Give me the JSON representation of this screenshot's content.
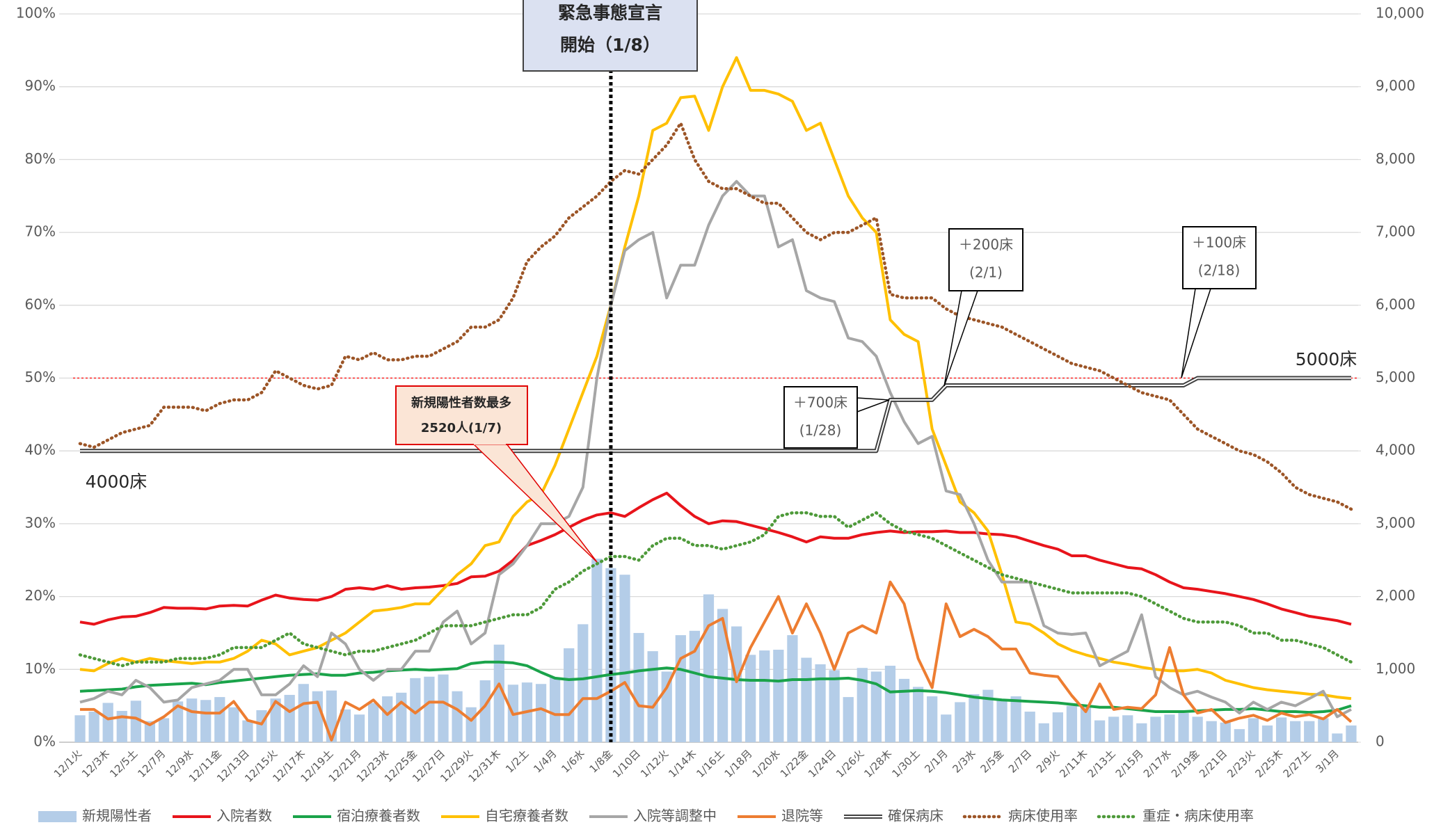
{
  "chart_data": {
    "type": "combo",
    "categories": [
      "12/1火",
      null,
      "12/3木",
      null,
      "12/5土",
      null,
      "12/7月",
      null,
      "12/9水",
      null,
      "12/11金",
      null,
      "12/13日",
      null,
      "12/15火",
      null,
      "12/17木",
      null,
      "12/19土",
      null,
      "12/21月",
      null,
      "12/23水",
      null,
      "12/25金",
      null,
      "12/27日",
      null,
      "12/29火",
      null,
      "12/31木",
      null,
      "1/2土",
      null,
      "1/4月",
      null,
      "1/6水",
      null,
      "1/8金",
      null,
      "1/10日",
      null,
      "1/12火",
      null,
      "1/14木",
      null,
      "1/16土",
      null,
      "1/18月",
      null,
      "1/20水",
      null,
      "1/22金",
      null,
      "1/24日",
      null,
      "1/26火",
      null,
      "1/28木",
      null,
      "1/30土",
      null,
      "2/1月",
      null,
      "2/3水",
      null,
      "2/5金",
      null,
      "2/7日",
      null,
      "2/9火",
      null,
      "2/11木",
      null,
      "2/13土",
      null,
      "2/15月",
      null,
      "2/17水",
      null,
      "2/19金",
      null,
      "2/21日",
      null,
      "2/23火",
      null,
      "2/25木",
      null,
      "2/27土",
      null,
      "3/1月",
      null
    ],
    "ylim": [
      0,
      100
    ],
    "yticks": [
      {
        "value": 0,
        "label": "0%"
      },
      {
        "value": 10,
        "label": "10%"
      },
      {
        "value": 20,
        "label": "20%"
      },
      {
        "value": 30,
        "label": "30%"
      },
      {
        "value": 40,
        "label": "40%"
      },
      {
        "value": 50,
        "label": "50%"
      },
      {
        "value": 60,
        "label": "60%"
      },
      {
        "value": 70,
        "label": "70%"
      },
      {
        "value": 80,
        "label": "80%"
      },
      {
        "value": 90,
        "label": "90%"
      },
      {
        "value": 100,
        "label": "100%"
      }
    ],
    "y2lim": [
      0,
      10000
    ],
    "y2ticks": [
      0,
      {
        "value": 1000,
        "label": "1,000"
      },
      {
        "value": 2000,
        "label": "2,000"
      },
      {
        "value": 3000,
        "label": "3,000"
      },
      {
        "value": 4000,
        "label": "4,000"
      },
      {
        "value": 5000,
        "label": "5,000"
      },
      {
        "value": 6000,
        "label": "6,000"
      },
      {
        "value": 7000,
        "label": "7,000"
      },
      {
        "value": 8000,
        "label": "8,000"
      },
      {
        "value": 9000,
        "label": "9,000"
      },
      {
        "value": 10000,
        "label": "10,000"
      }
    ],
    "grid": true,
    "reference_line": {
      "value": 50,
      "color": "#ff0000"
    },
    "legend": "bottom",
    "series": [
      {
        "name": "新規陽性者",
        "type": "bar",
        "axis": "y2",
        "color": "#b4cde8",
        "values": [
          370,
          420,
          540,
          430,
          570,
          290,
          330,
          560,
          600,
          580,
          620,
          480,
          300,
          440,
          600,
          650,
          800,
          700,
          710,
          450,
          380,
          540,
          630,
          680,
          880,
          900,
          930,
          700,
          480,
          850,
          1340,
          790,
          820,
          800,
          890,
          1290,
          1620,
          2520,
          2390,
          2300,
          1500,
          1250,
          970,
          1470,
          1530,
          2030,
          1830,
          1590,
          1200,
          1260,
          1270,
          1470,
          1160,
          1070,
          990,
          620,
          1020,
          970,
          1050,
          870,
          760,
          630,
          380,
          550,
          660,
          720,
          580,
          630,
          420,
          260,
          410,
          500,
          480,
          300,
          350,
          370,
          260,
          350,
          380,
          400,
          350,
          290,
          270,
          180,
          330,
          230,
          340,
          290,
          290,
          330,
          120,
          230
        ]
      },
      {
        "name": "入院者数",
        "type": "line",
        "axis": "y2",
        "color": "#e8141b",
        "values": [
          1650,
          1620,
          1680,
          1720,
          1730,
          1780,
          1850,
          1840,
          1840,
          1830,
          1870,
          1880,
          1870,
          1950,
          2020,
          1980,
          1960,
          1950,
          2000,
          2100,
          2120,
          2100,
          2150,
          2100,
          2120,
          2130,
          2150,
          2180,
          2270,
          2280,
          2350,
          2500,
          2700,
          2770,
          2850,
          2950,
          3050,
          3120,
          3150,
          3100,
          3220,
          3330,
          3420,
          3250,
          3100,
          3000,
          3040,
          3030,
          2980,
          2930,
          2880,
          2820,
          2750,
          2820,
          2800,
          2800,
          2850,
          2880,
          2900,
          2880,
          2890,
          2890,
          2900,
          2880,
          2880,
          2860,
          2850,
          2820,
          2760,
          2700,
          2650,
          2560,
          2560,
          2500,
          2450,
          2400,
          2380,
          2300,
          2200,
          2120,
          2100,
          2070,
          2040,
          2000,
          1960,
          1900,
          1830,
          1780,
          1730,
          1700,
          1670,
          1620
        ]
      },
      {
        "name": "宿泊療養者数",
        "type": "line",
        "axis": "y2",
        "color": "#1aa34a",
        "values": [
          700,
          710,
          720,
          730,
          760,
          780,
          790,
          800,
          810,
          790,
          820,
          840,
          860,
          880,
          900,
          920,
          930,
          940,
          920,
          920,
          950,
          960,
          980,
          990,
          1000,
          990,
          1000,
          1010,
          1080,
          1100,
          1100,
          1090,
          1050,
          960,
          880,
          860,
          870,
          900,
          930,
          950,
          980,
          1000,
          1020,
          1000,
          950,
          900,
          880,
          860,
          850,
          850,
          840,
          860,
          860,
          870,
          870,
          880,
          850,
          800,
          690,
          700,
          710,
          700,
          680,
          650,
          620,
          600,
          580,
          570,
          560,
          550,
          540,
          520,
          500,
          480,
          480,
          460,
          440,
          420,
          420,
          420,
          430,
          440,
          450,
          450,
          460,
          440,
          420,
          420,
          410,
          420,
          440,
          500
        ]
      },
      {
        "name": "自宅療養者数",
        "type": "line",
        "axis": "y2",
        "color": "#ffc000",
        "values": [
          1000,
          980,
          1080,
          1150,
          1100,
          1150,
          1120,
          1100,
          1080,
          1100,
          1100,
          1150,
          1250,
          1400,
          1350,
          1200,
          1250,
          1300,
          1400,
          1500,
          1650,
          1800,
          1820,
          1850,
          1900,
          1900,
          2100,
          2300,
          2450,
          2700,
          2750,
          3100,
          3300,
          3400,
          3800,
          4300,
          4800,
          5300,
          6000,
          6800,
          7500,
          8400,
          8500,
          8850,
          8870,
          8400,
          9000,
          9400,
          8950,
          8950,
          8900,
          8800,
          8400,
          8500,
          8000,
          7500,
          7200,
          7000,
          5800,
          5600,
          5500,
          4300,
          3800,
          3300,
          3150,
          2900,
          2300,
          1650,
          1620,
          1500,
          1350,
          1260,
          1200,
          1150,
          1100,
          1070,
          1030,
          1000,
          980,
          980,
          1000,
          950,
          850,
          800,
          750,
          720,
          700,
          680,
          660,
          650,
          620,
          600
        ]
      },
      {
        "name": "入院等調整中",
        "type": "line",
        "axis": "y2",
        "color": "#a6a6a6",
        "values": [
          550,
          600,
          700,
          650,
          850,
          750,
          550,
          580,
          750,
          800,
          850,
          1000,
          1000,
          650,
          650,
          800,
          1050,
          900,
          1500,
          1350,
          1000,
          850,
          1000,
          1000,
          1250,
          1250,
          1650,
          1800,
          1350,
          1500,
          2300,
          2450,
          2700,
          3000,
          3000,
          3100,
          3500,
          5000,
          6000,
          6750,
          6900,
          7000,
          6100,
          6550,
          6550,
          7100,
          7500,
          7700,
          7500,
          7500,
          6800,
          6900,
          6200,
          6100,
          6050,
          5550,
          5500,
          5300,
          4800,
          4400,
          4100,
          4200,
          3450,
          3400,
          3000,
          2500,
          2200,
          2200,
          2200,
          1600,
          1500,
          1480,
          1500,
          1050,
          1150,
          1250,
          1750,
          900,
          750,
          650,
          700,
          620,
          550,
          400,
          550,
          450,
          550,
          500,
          600,
          700,
          350,
          450
        ]
      },
      {
        "name": "退院等",
        "type": "line",
        "axis": "y2",
        "color": "#ed7d31",
        "values": [
          450,
          450,
          320,
          350,
          330,
          240,
          350,
          500,
          420,
          400,
          400,
          560,
          300,
          250,
          560,
          420,
          530,
          550,
          30,
          550,
          450,
          580,
          380,
          550,
          400,
          550,
          550,
          450,
          300,
          500,
          800,
          380,
          420,
          460,
          380,
          380,
          600,
          600,
          700,
          820,
          500,
          480,
          750,
          1150,
          1250,
          1600,
          1700,
          830,
          1300,
          1650,
          2000,
          1500,
          1900,
          1500,
          1000,
          1500,
          1600,
          1500,
          2200,
          1900,
          1150,
          750,
          1900,
          1450,
          1550,
          1450,
          1280,
          1280,
          950,
          920,
          900,
          640,
          420,
          800,
          450,
          480,
          460,
          650,
          1300,
          650,
          400,
          450,
          270,
          330,
          370,
          300,
          400,
          350,
          380,
          320,
          450,
          280
        ]
      },
      {
        "name": "確保病床",
        "type": "line",
        "style": "double",
        "axis": "y2",
        "color": "#404040",
        "values": [
          4000,
          4000,
          4000,
          4000,
          4000,
          4000,
          4000,
          4000,
          4000,
          4000,
          4000,
          4000,
          4000,
          4000,
          4000,
          4000,
          4000,
          4000,
          4000,
          4000,
          4000,
          4000,
          4000,
          4000,
          4000,
          4000,
          4000,
          4000,
          4000,
          4000,
          4000,
          4000,
          4000,
          4000,
          4000,
          4000,
          4000,
          4000,
          4000,
          4000,
          4000,
          4000,
          4000,
          4000,
          4000,
          4000,
          4000,
          4000,
          4000,
          4000,
          4000,
          4000,
          4000,
          4000,
          4000,
          4000,
          4000,
          4000,
          4700,
          4700,
          4700,
          4700,
          4900,
          4900,
          4900,
          4900,
          4900,
          4900,
          4900,
          4900,
          4900,
          4900,
          4900,
          4900,
          4900,
          4900,
          4900,
          4900,
          4900,
          4900,
          5000,
          5000,
          5000,
          5000,
          5000,
          5000,
          5000,
          5000,
          5000,
          5000,
          5000,
          5000
        ]
      },
      {
        "name": "病床使用率",
        "type": "line",
        "style": "dotted",
        "axis": "y",
        "color": "#9c5527",
        "values": [
          41,
          40.5,
          41.5,
          42.5,
          43,
          43.5,
          46,
          46,
          46,
          45.5,
          46.5,
          47,
          47,
          48,
          51,
          50,
          49,
          48.5,
          49,
          53,
          52.5,
          53.5,
          52.5,
          52.5,
          53,
          53,
          54,
          55,
          57,
          57,
          58,
          61,
          66,
          68,
          69.5,
          72,
          73.5,
          75,
          77,
          78.5,
          78,
          80,
          82,
          85,
          80,
          77,
          76,
          76,
          75,
          74,
          74,
          72,
          70,
          69,
          70,
          70,
          71,
          72,
          61.5,
          61,
          61,
          61,
          59.5,
          58.5,
          58,
          57.5,
          57,
          56,
          55,
          54,
          53,
          52,
          51.5,
          51,
          50,
          49,
          48,
          47.5,
          47,
          45,
          43,
          42,
          41,
          40,
          39.5,
          38.5,
          37,
          35,
          34,
          33.5,
          33,
          32
        ]
      },
      {
        "name": "重症・病床使用率",
        "type": "line",
        "style": "dotted",
        "axis": "y",
        "color": "#4e9a3a",
        "values": [
          12,
          11.5,
          11,
          10.5,
          11,
          11,
          11,
          11.5,
          11.5,
          11.5,
          12,
          13,
          13,
          13,
          14,
          15,
          13.5,
          13,
          12.5,
          12,
          12.5,
          12.5,
          13,
          13.5,
          14,
          15,
          16,
          16,
          16,
          16.5,
          17,
          17.5,
          17.5,
          18.5,
          21,
          22,
          23.5,
          24.5,
          25.5,
          25.5,
          25,
          27,
          28,
          28,
          27,
          27,
          26.5,
          27,
          27.5,
          28.5,
          31,
          31.5,
          31.5,
          31,
          31,
          29.5,
          30.5,
          31.5,
          30,
          29,
          28.5,
          28,
          27,
          26,
          25,
          24,
          23,
          22.5,
          22,
          21.5,
          21,
          20.5,
          20.5,
          20.5,
          20.5,
          20.5,
          20,
          19,
          18,
          17,
          16.5,
          16.5,
          16.5,
          16,
          15,
          15,
          14,
          14,
          13.5,
          13,
          12,
          11
        ]
      }
    ],
    "annotations": [
      {
        "lines": [
          "緊急事態宣言",
          "開始（1/8）"
        ]
      },
      {
        "lines": [
          "新規陽性者数最多",
          "2520人(1/7)"
        ]
      },
      {
        "lines": [
          "＋200床",
          "(2/1)"
        ]
      },
      {
        "lines": [
          "＋100床",
          "(2/18)"
        ]
      },
      {
        "lines": [
          "＋700床",
          "(1/28)"
        ]
      },
      {
        "lines": [
          "5000床"
        ]
      },
      {
        "lines": [
          "4000床"
        ]
      }
    ]
  }
}
